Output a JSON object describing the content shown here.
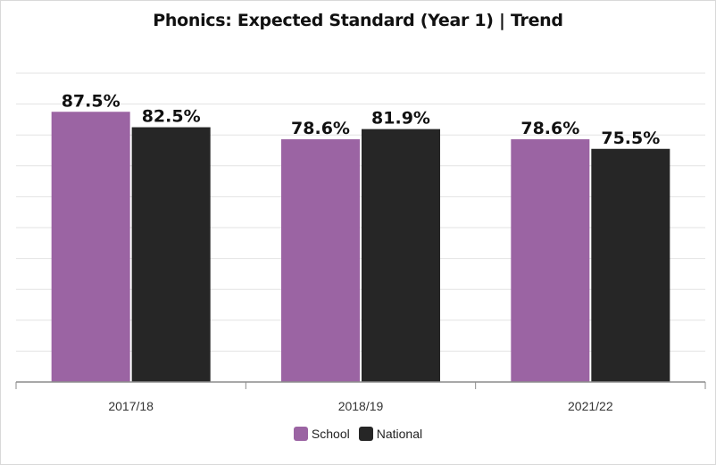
{
  "chart_data": {
    "type": "bar",
    "title": "Phonics: Expected Standard (Year 1) | Trend",
    "categories": [
      "2017/18",
      "2018/19",
      "2021/22"
    ],
    "series": [
      {
        "name": "School",
        "values": [
          87.5,
          78.6,
          78.6
        ],
        "labels": [
          "87.5%",
          "78.6%",
          "78.6%"
        ],
        "color": "#9b64a3"
      },
      {
        "name": "National",
        "values": [
          82.5,
          81.9,
          75.5
        ],
        "labels": [
          "82.5%",
          "81.9%",
          "75.5%"
        ],
        "color": "#262626"
      }
    ],
    "ylim": [
      0,
      100
    ],
    "grid": true,
    "legend": "bottom-center",
    "xlabel": "",
    "ylabel": ""
  }
}
